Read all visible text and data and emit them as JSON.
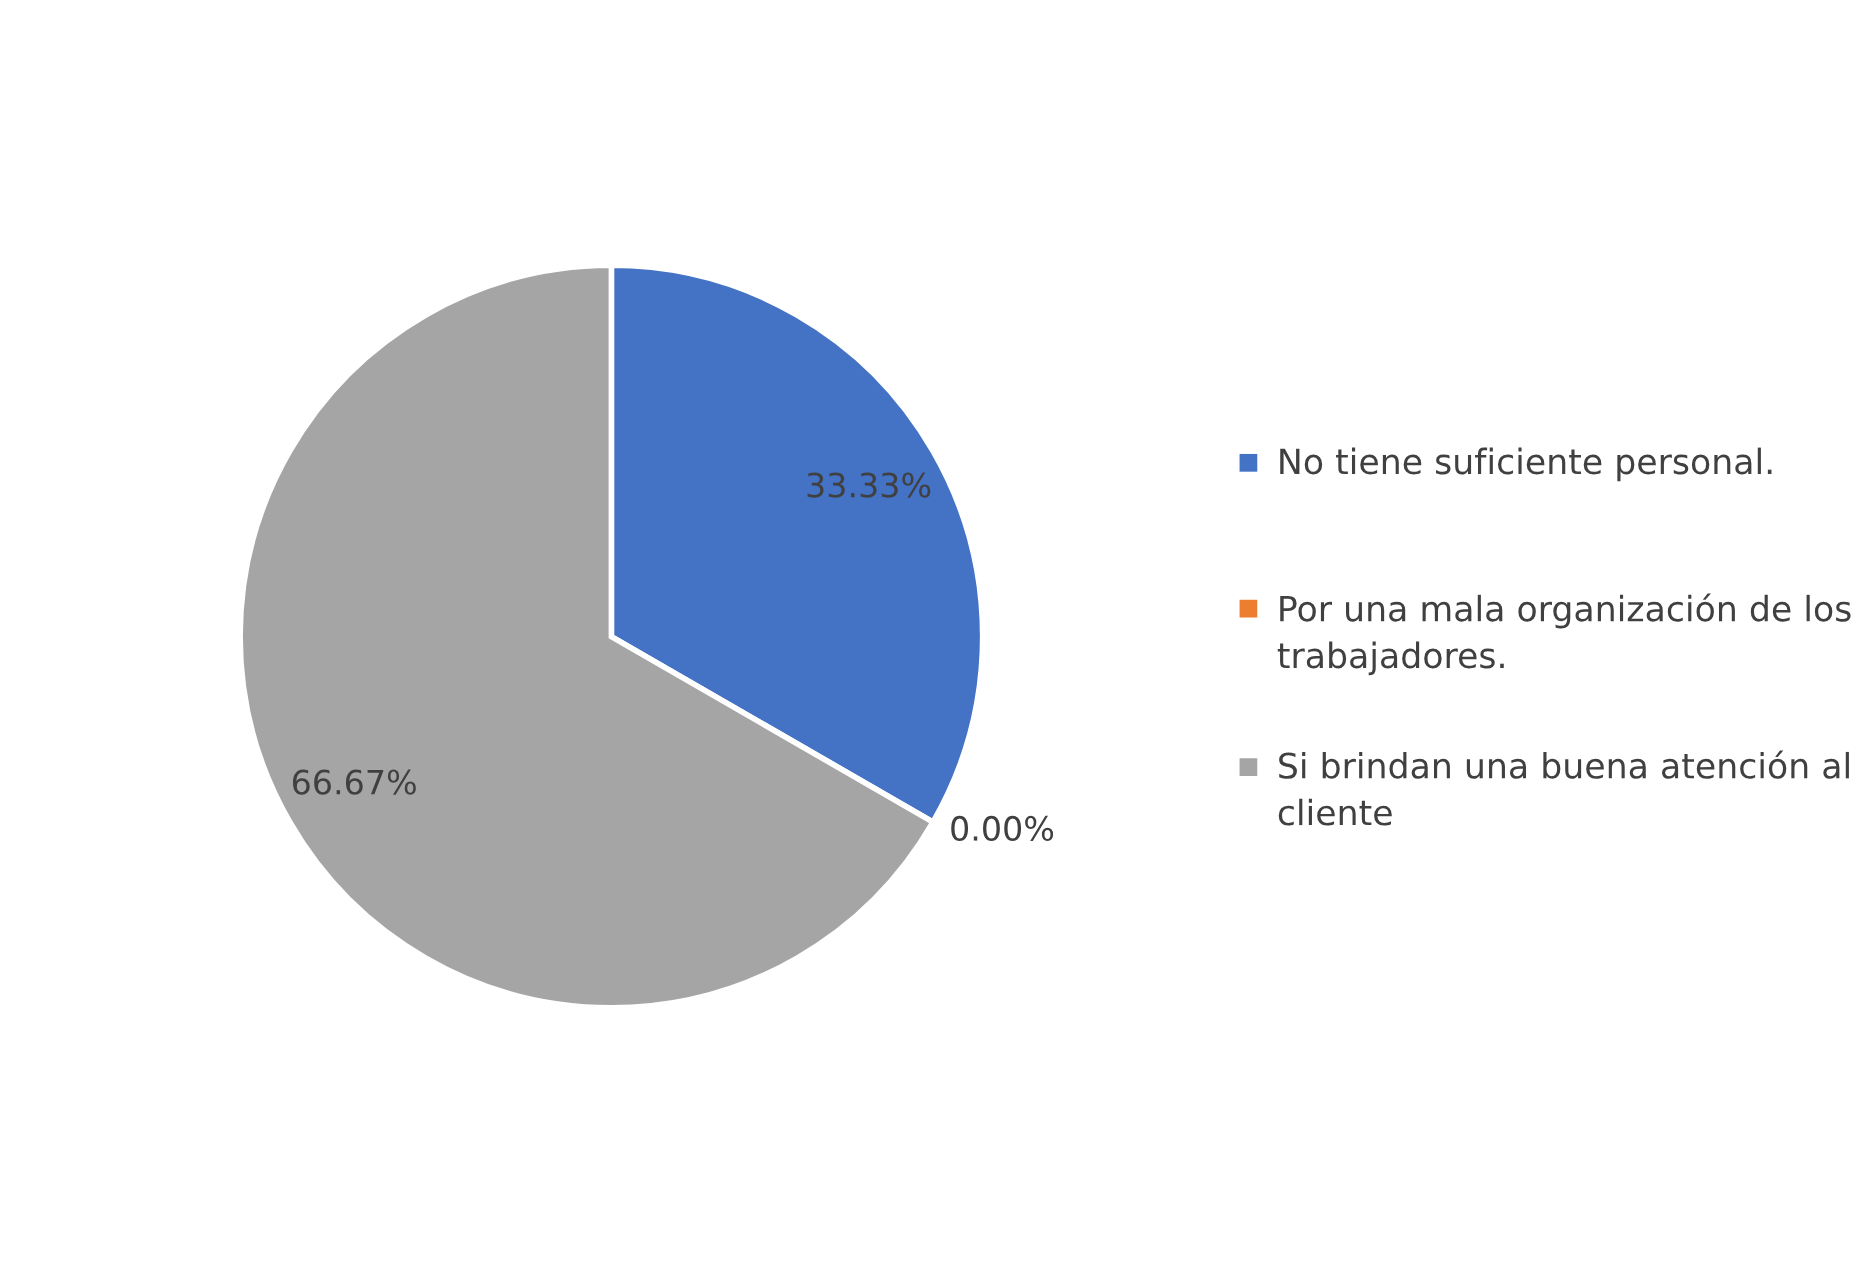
{
  "chart_data": {
    "type": "pie",
    "categories": [
      "No tiene suficiente personal.",
      "Por una mala organización de los trabajadores.",
      "Si brindan una buena atención al cliente"
    ],
    "values": [
      33.33,
      0,
      66.67
    ],
    "colors": [
      "#4472c4",
      "#ed7d31",
      "#a5a5a5"
    ],
    "value_labels": [
      "33.33%",
      "0.00%",
      "66.67%"
    ],
    "legend": "right"
  }
}
